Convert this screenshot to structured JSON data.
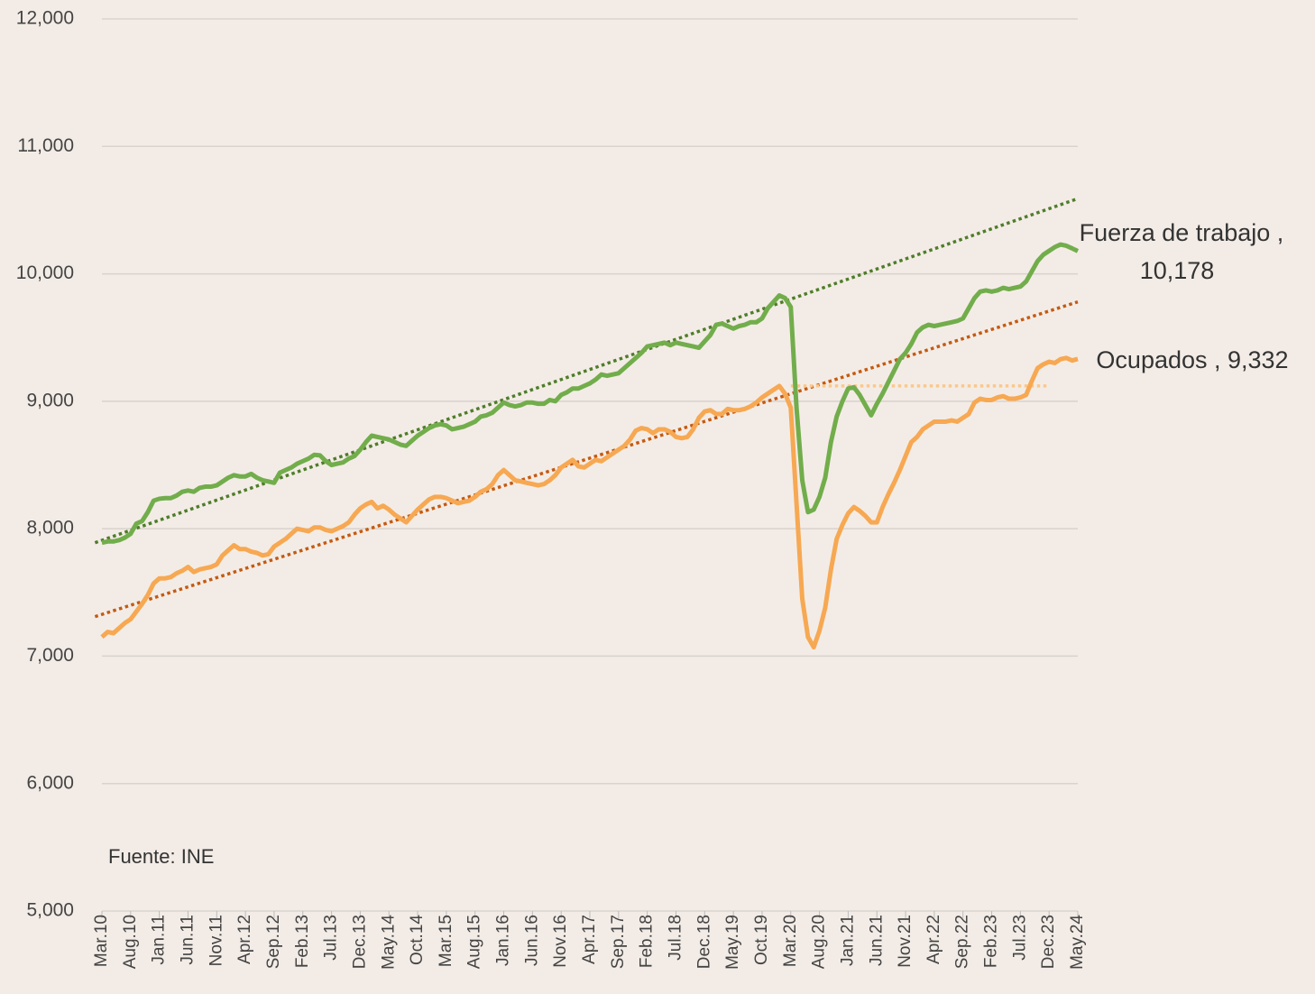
{
  "chart_data": {
    "type": "line",
    "source": "Fuente: INE",
    "categories": [
      "Mar.10",
      null,
      null,
      null,
      null,
      "Aug.10",
      null,
      null,
      null,
      null,
      "Jan.11",
      null,
      null,
      null,
      null,
      "Jun.11",
      null,
      null,
      null,
      null,
      "Nov.11",
      null,
      null,
      null,
      null,
      "Apr.12",
      null,
      null,
      null,
      null,
      "Sep.12",
      null,
      null,
      null,
      null,
      "Feb.13",
      null,
      null,
      null,
      null,
      "Jul.13",
      null,
      null,
      null,
      null,
      "Dec.13",
      null,
      null,
      null,
      null,
      "May.14",
      null,
      null,
      null,
      null,
      "Oct.14",
      null,
      null,
      null,
      null,
      "Mar.15",
      null,
      null,
      null,
      null,
      "Aug.15",
      null,
      null,
      null,
      null,
      "Jan.16",
      null,
      null,
      null,
      null,
      "Jun.16",
      null,
      null,
      null,
      null,
      "Nov.16",
      null,
      null,
      null,
      null,
      "Apr.17",
      null,
      null,
      null,
      null,
      "Sep.17",
      null,
      null,
      null,
      null,
      "Feb.18",
      null,
      null,
      null,
      null,
      "Jul.18",
      null,
      null,
      null,
      null,
      "Dec.18",
      null,
      null,
      null,
      null,
      "May.19",
      null,
      null,
      null,
      null,
      "Oct.19",
      null,
      null,
      null,
      null,
      "Mar.20",
      null,
      null,
      null,
      null,
      "Aug.20",
      null,
      null,
      null,
      null,
      "Jan.21",
      null,
      null,
      null,
      null,
      "Jun.21",
      null,
      null,
      null,
      null,
      "Nov.21",
      null,
      null,
      null,
      null,
      "Apr.22",
      null,
      null,
      null,
      null,
      "Sep.22",
      null,
      null,
      null,
      null,
      "Feb.23",
      null,
      null,
      null,
      null,
      "Jul.23",
      null,
      null,
      null,
      null,
      "Dec.23",
      null,
      null,
      null,
      null,
      "May.24"
    ],
    "series": [
      {
        "label_lines": [
          "Fuerza de trabajo ,",
          "10,178"
        ],
        "color": "#72ad4c",
        "values": [
          7890,
          7900,
          7900,
          7910,
          7930,
          7960,
          8040,
          8060,
          8130,
          8220,
          8235,
          8240,
          8240,
          8260,
          8290,
          8300,
          8290,
          8320,
          8330,
          8330,
          8340,
          8370,
          8400,
          8420,
          8410,
          8410,
          8430,
          8400,
          8380,
          8370,
          8360,
          8440,
          8460,
          8480,
          8510,
          8530,
          8550,
          8580,
          8575,
          8530,
          8500,
          8510,
          8520,
          8550,
          8570,
          8620,
          8680,
          8730,
          8720,
          8710,
          8700,
          8680,
          8660,
          8650,
          8690,
          8730,
          8760,
          8790,
          8810,
          8820,
          8810,
          8780,
          8790,
          8800,
          8820,
          8840,
          8880,
          8890,
          8910,
          8950,
          8990,
          8970,
          8960,
          8970,
          8990,
          8990,
          8980,
          8980,
          9010,
          9000,
          9050,
          9070,
          9100,
          9100,
          9120,
          9140,
          9170,
          9210,
          9200,
          9210,
          9220,
          9260,
          9300,
          9340,
          9380,
          9430,
          9440,
          9450,
          9460,
          9440,
          9460,
          9450,
          9440,
          9430,
          9420,
          9470,
          9520,
          9600,
          9610,
          9590,
          9570,
          9590,
          9600,
          9620,
          9620,
          9650,
          9730,
          9780,
          9830,
          9810,
          9740,
          8950,
          8380,
          8130,
          8150,
          8250,
          8400,
          8680,
          8880,
          9000,
          9100,
          9110,
          9050,
          8970,
          8890,
          8980,
          9060,
          9150,
          9240,
          9330,
          9380,
          9450,
          9540,
          9580,
          9600,
          9590,
          9600,
          9610,
          9620,
          9630,
          9650,
          9730,
          9810,
          9860,
          9870,
          9860,
          9870,
          9890,
          9880,
          9890,
          9900,
          9940,
          10020,
          10100,
          10150,
          10180,
          10210,
          10230,
          10220,
          10200,
          10178
        ]
      },
      {
        "label_lines": [
          "Ocupados , 9,332"
        ],
        "color": "#f7a852",
        "values": [
          7150,
          7190,
          7180,
          7220,
          7260,
          7290,
          7350,
          7410,
          7480,
          7570,
          7610,
          7610,
          7620,
          7650,
          7670,
          7700,
          7660,
          7680,
          7690,
          7700,
          7720,
          7790,
          7830,
          7870,
          7840,
          7840,
          7820,
          7810,
          7790,
          7800,
          7860,
          7890,
          7920,
          7960,
          8000,
          7990,
          7980,
          8010,
          8010,
          7990,
          7980,
          8000,
          8020,
          8050,
          8110,
          8160,
          8190,
          8210,
          8160,
          8180,
          8150,
          8110,
          8080,
          8050,
          8100,
          8150,
          8190,
          8230,
          8250,
          8250,
          8240,
          8220,
          8200,
          8210,
          8220,
          8250,
          8290,
          8310,
          8350,
          8420,
          8460,
          8420,
          8380,
          8370,
          8360,
          8350,
          8340,
          8350,
          8380,
          8420,
          8480,
          8510,
          8540,
          8490,
          8480,
          8510,
          8540,
          8530,
          8560,
          8590,
          8620,
          8650,
          8700,
          8770,
          8790,
          8780,
          8750,
          8780,
          8780,
          8760,
          8720,
          8710,
          8720,
          8780,
          8870,
          8920,
          8930,
          8900,
          8900,
          8940,
          8930,
          8930,
          8940,
          8960,
          8990,
          9030,
          9060,
          9090,
          9120,
          9060,
          8950,
          8200,
          7450,
          7150,
          7070,
          7200,
          7380,
          7680,
          7920,
          8030,
          8120,
          8170,
          8140,
          8100,
          8050,
          8050,
          8170,
          8270,
          8360,
          8460,
          8570,
          8680,
          8720,
          8780,
          8810,
          8840,
          8840,
          8840,
          8850,
          8840,
          8870,
          8900,
          8990,
          9020,
          9010,
          9010,
          9030,
          9040,
          9020,
          9020,
          9030,
          9050,
          9160,
          9260,
          9290,
          9310,
          9300,
          9330,
          9340,
          9320,
          9332
        ]
      }
    ],
    "trendlines": [
      {
        "color": "#4f7d2a",
        "x": [
          -1.2,
          170
        ],
        "values": [
          7890,
          10590
        ]
      },
      {
        "color": "#c55a11",
        "x": [
          -1.2,
          170
        ],
        "values": [
          7310,
          9780
        ]
      },
      {
        "color": "#fbc88a",
        "x": [
          120,
          165
        ],
        "values": [
          9120,
          9120
        ]
      }
    ],
    "ylim": [
      5000,
      12000
    ],
    "yticks": [
      {
        "value": 5000,
        "label": "5,000"
      },
      {
        "value": 6000,
        "label": "6,000"
      },
      {
        "value": 7000,
        "label": "7,000"
      },
      {
        "value": 8000,
        "label": "8,000"
      },
      {
        "value": 9000,
        "label": "9,000"
      },
      {
        "value": 10000,
        "label": "10,000"
      },
      {
        "value": 11000,
        "label": "11,000"
      },
      {
        "value": 12000,
        "label": "12,000"
      }
    ],
    "grid": true
  }
}
